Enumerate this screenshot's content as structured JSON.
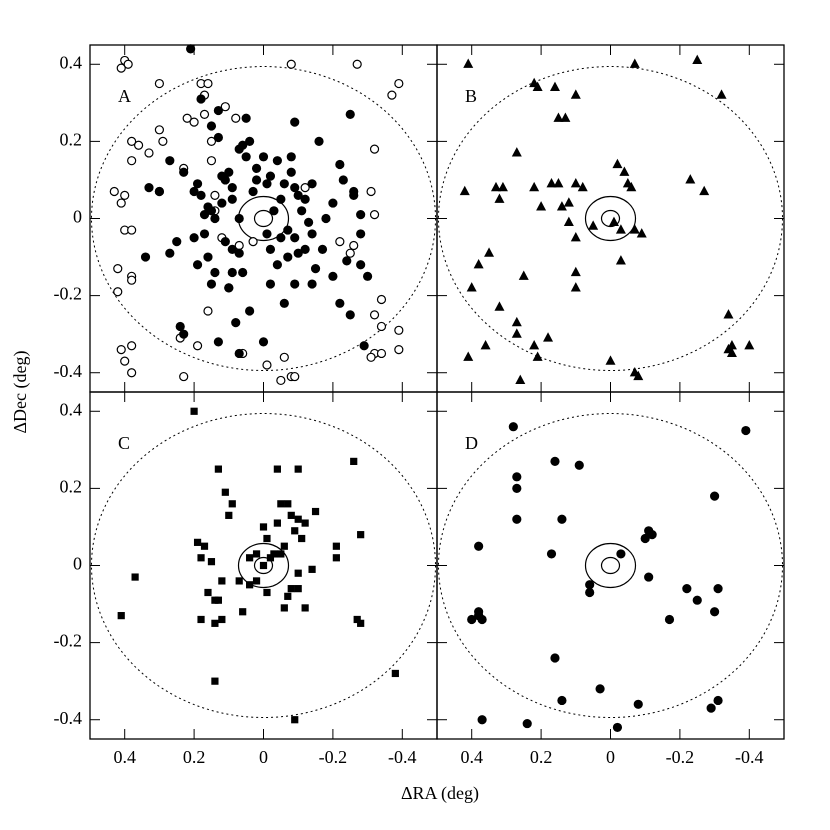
{
  "xlabel": "ΔRA (deg)",
  "ylabel": "ΔDec (deg)",
  "chart_data": [
    {
      "type": "scatter",
      "annotation": "A",
      "xlim": [
        0.5,
        -0.5
      ],
      "ylim": [
        -0.45,
        0.45
      ],
      "xticks": [
        0.4,
        0.2,
        0,
        -0.2,
        -0.4
      ],
      "yticks": [
        -0.4,
        -0.2,
        0,
        0.2,
        0.4
      ],
      "series": [
        {
          "color": "#000",
          "marker": "circle",
          "filled": false,
          "x": [
            0.4,
            0.41,
            0.39,
            0.3,
            0.18,
            0.16,
            0.17,
            0.11,
            0.08,
            0.22,
            0.2,
            0.17,
            0.3,
            0.36,
            0.38,
            0.29,
            0.33,
            0.38,
            0.15,
            0.23,
            0.15,
            -0.08,
            -0.27,
            -0.37,
            -0.39,
            -0.32,
            0.43,
            0.4,
            0.41,
            0.3,
            0.14,
            -0.12,
            0.14,
            0.4,
            0.38,
            0.07,
            0.12,
            -0.22,
            -0.25,
            0.42,
            0.38,
            0.38,
            0.42,
            0.1,
            0.16,
            -0.34,
            -0.32,
            -0.34,
            0.24,
            0.19,
            0.06,
            0.38,
            0.41,
            0.4,
            0.38,
            0.23,
            -0.01,
            -0.06,
            -0.08,
            -0.09,
            -0.05,
            -0.39,
            -0.32,
            -0.31,
            -0.34,
            -0.39,
            -0.26,
            -0.32,
            0.03,
            -0.31
          ],
          "y": [
            0.41,
            0.39,
            0.4,
            0.35,
            0.35,
            0.35,
            0.32,
            0.29,
            0.26,
            0.26,
            0.25,
            0.27,
            0.23,
            0.19,
            0.2,
            0.2,
            0.17,
            0.15,
            0.2,
            0.13,
            0.15,
            0.4,
            0.4,
            0.32,
            0.35,
            0.18,
            0.07,
            0.06,
            0.04,
            0.07,
            0.06,
            0.08,
            0.02,
            -0.03,
            -0.03,
            -0.07,
            -0.05,
            -0.06,
            -0.09,
            -0.13,
            -0.15,
            -0.16,
            -0.19,
            -0.18,
            -0.24,
            -0.21,
            -0.25,
            -0.28,
            -0.31,
            -0.33,
            -0.35,
            -0.33,
            -0.34,
            -0.37,
            -0.4,
            -0.41,
            -0.38,
            -0.36,
            -0.41,
            -0.41,
            -0.42,
            -0.29,
            -0.35,
            -0.36,
            -0.35,
            -0.34,
            -0.07,
            0.01,
            -0.06,
            0.07
          ]
        },
        {
          "color": "#000",
          "marker": "circle",
          "filled": true,
          "x": [
            0.2,
            0.18,
            0.19,
            0.16,
            0.17,
            0.15,
            0.14,
            0.12,
            0.11,
            0.1,
            0.09,
            0.07,
            0.05,
            0.06,
            0.15,
            0.13,
            0.18,
            0.12,
            0.09,
            0.07,
            0.2,
            0.16,
            0.19,
            0.17,
            0.11,
            0.09,
            0.07,
            0.06,
            0.15,
            0.14,
            0.1,
            0.09,
            0.23,
            0.25,
            0.33,
            0.34,
            0.24,
            0.23,
            0.13,
            0.07,
            0.0,
            0.04,
            -0.03,
            -0.05,
            -0.06,
            -0.08,
            -0.02,
            -0.01,
            -0.04,
            -0.08,
            -0.09,
            -0.1,
            -0.12,
            -0.14,
            -0.11,
            -0.13,
            -0.05,
            -0.07,
            -0.09,
            -0.1,
            -0.12,
            -0.14,
            -0.07,
            -0.04,
            -0.02,
            -0.01,
            -0.15,
            -0.17,
            -0.18,
            -0.2,
            -0.23,
            -0.26,
            -0.28,
            -0.28,
            -0.24,
            -0.28,
            -0.3,
            -0.2,
            -0.14,
            -0.09,
            -0.06,
            -0.02,
            -0.22,
            -0.25,
            -0.09,
            -0.16,
            -0.25,
            -0.22,
            -0.26,
            0.02,
            0.0,
            0.02,
            0.05,
            0.03,
            0.27,
            0.27,
            0.3,
            0.04,
            0.13,
            -0.29,
            0.08,
            0.21
          ],
          "y": [
            0.07,
            0.06,
            0.09,
            0.03,
            0.01,
            0.02,
            0.0,
            0.04,
            0.1,
            0.12,
            0.05,
            0.18,
            0.26,
            0.19,
            0.24,
            0.28,
            0.31,
            0.11,
            0.08,
            0.0,
            -0.05,
            -0.1,
            -0.12,
            -0.04,
            -0.06,
            -0.08,
            -0.09,
            -0.14,
            -0.17,
            -0.14,
            -0.18,
            -0.14,
            0.12,
            -0.06,
            0.08,
            -0.1,
            -0.28,
            -0.3,
            -0.32,
            -0.35,
            -0.32,
            -0.24,
            0.02,
            0.05,
            0.09,
            0.12,
            0.11,
            0.09,
            0.15,
            0.16,
            0.08,
            0.06,
            0.05,
            0.09,
            0.02,
            -0.01,
            -0.05,
            -0.03,
            -0.05,
            -0.09,
            -0.08,
            -0.04,
            -0.1,
            -0.12,
            -0.08,
            -0.04,
            -0.13,
            -0.08,
            0.0,
            0.04,
            0.1,
            0.06,
            0.01,
            -0.04,
            -0.11,
            -0.12,
            -0.15,
            -0.15,
            -0.17,
            -0.17,
            -0.22,
            -0.17,
            -0.22,
            -0.25,
            0.25,
            0.2,
            0.27,
            0.14,
            0.07,
            0.1,
            0.16,
            0.13,
            0.16,
            0.07,
            0.15,
            -0.09,
            0.07,
            0.2,
            0.21,
            -0.33,
            -0.27,
            0.44
          ]
        }
      ]
    },
    {
      "type": "scatter",
      "annotation": "B",
      "xlim": [
        0.5,
        -0.5
      ],
      "ylim": [
        -0.45,
        0.45
      ],
      "xticks": [
        0.4,
        0.2,
        0,
        -0.2,
        -0.4
      ],
      "yticks": [
        -0.4,
        -0.2,
        0,
        0.2,
        0.4
      ],
      "series": [
        {
          "color": "#000",
          "marker": "triangle",
          "filled": true,
          "x": [
            0.41,
            0.42,
            0.33,
            0.31,
            0.32,
            0.35,
            0.38,
            0.4,
            0.41,
            0.36,
            0.32,
            0.27,
            0.27,
            0.22,
            0.25,
            0.18,
            0.22,
            0.21,
            0.16,
            0.15,
            0.13,
            0.1,
            0.27,
            0.22,
            0.2,
            0.17,
            0.15,
            0.14,
            0.12,
            0.1,
            0.08,
            0.12,
            0.1,
            0.1,
            0.1,
            0.05,
            -0.02,
            -0.04,
            -0.05,
            -0.06,
            -0.03,
            -0.07,
            -0.09,
            -0.03,
            0.0,
            -0.07,
            -0.08,
            -0.07,
            -0.25,
            -0.32,
            -0.23,
            -0.27,
            0.26,
            -0.34,
            -0.35,
            -0.34,
            -0.35,
            -0.4,
            0.21,
            -0.01
          ],
          "y": [
            0.4,
            0.07,
            0.08,
            0.08,
            0.05,
            -0.09,
            -0.12,
            -0.18,
            -0.36,
            -0.33,
            -0.23,
            -0.27,
            -0.3,
            -0.33,
            -0.15,
            -0.31,
            0.35,
            0.34,
            0.34,
            0.26,
            0.26,
            0.32,
            0.17,
            0.08,
            0.03,
            0.09,
            0.09,
            0.03,
            0.04,
            0.09,
            0.08,
            -0.01,
            -0.05,
            -0.14,
            -0.18,
            -0.02,
            0.14,
            0.12,
            0.09,
            0.08,
            -0.03,
            -0.03,
            -0.04,
            -0.11,
            -0.37,
            -0.4,
            -0.41,
            0.4,
            0.41,
            0.32,
            0.1,
            0.07,
            -0.42,
            -0.25,
            -0.33,
            -0.34,
            -0.35,
            -0.33,
            -0.36,
            -0.01
          ]
        }
      ]
    },
    {
      "type": "scatter",
      "annotation": "C",
      "xlim": [
        0.5,
        -0.5
      ],
      "ylim": [
        -0.45,
        0.45
      ],
      "xticks": [
        0.4,
        0.2,
        0,
        -0.2,
        -0.4
      ],
      "yticks": [
        -0.4,
        -0.2,
        0,
        0.2,
        0.4
      ],
      "series": [
        {
          "color": "#000",
          "marker": "square",
          "filled": true,
          "x": [
            0.2,
            0.37,
            0.41,
            0.14,
            0.13,
            0.19,
            0.17,
            0.18,
            0.15,
            0.16,
            0.14,
            0.13,
            0.12,
            0.18,
            0.14,
            0.1,
            0.09,
            0.11,
            0.07,
            0.06,
            0.04,
            0.02,
            0.02,
            0.0,
            -0.01,
            -0.02,
            -0.03,
            -0.05,
            -0.06,
            -0.04,
            -0.05,
            -0.07,
            -0.08,
            -0.1,
            -0.09,
            -0.12,
            -0.11,
            -0.1,
            -0.08,
            -0.07,
            -0.06,
            -0.1,
            -0.12,
            -0.14,
            -0.15,
            -0.1,
            -0.04,
            -0.21,
            -0.21,
            -0.26,
            -0.28,
            -0.27,
            -0.28,
            -0.38,
            -0.09,
            0.0,
            0.04,
            -0.01,
            0.12
          ],
          "y": [
            0.4,
            -0.03,
            -0.13,
            -0.3,
            0.25,
            0.06,
            0.05,
            0.02,
            0.01,
            -0.07,
            -0.09,
            -0.09,
            -0.14,
            -0.14,
            -0.15,
            0.13,
            0.16,
            0.19,
            -0.04,
            -0.12,
            0.02,
            0.03,
            -0.04,
            0.1,
            0.07,
            0.02,
            0.03,
            0.03,
            0.05,
            0.11,
            0.16,
            0.16,
            0.13,
            0.12,
            0.09,
            0.11,
            0.07,
            -0.02,
            -0.06,
            -0.08,
            -0.11,
            -0.06,
            -0.11,
            -0.01,
            0.14,
            0.25,
            0.25,
            0.05,
            0.02,
            0.27,
            0.08,
            -0.14,
            -0.15,
            -0.28,
            -0.4,
            0.0,
            -0.05,
            -0.07,
            -0.04
          ]
        }
      ]
    },
    {
      "type": "scatter",
      "annotation": "D",
      "xlim": [
        0.5,
        -0.5
      ],
      "ylim": [
        -0.45,
        0.45
      ],
      "xticks": [
        0.4,
        0.2,
        0,
        -0.2,
        -0.4
      ],
      "yticks": [
        -0.4,
        -0.2,
        0,
        0.2,
        0.4
      ],
      "series": [
        {
          "color": "#000",
          "marker": "circle",
          "filled": true,
          "x": [
            0.38,
            0.4,
            0.38,
            0.38,
            0.37,
            0.37,
            0.24,
            0.28,
            0.27,
            0.27,
            0.27,
            0.16,
            0.09,
            0.14,
            0.17,
            0.06,
            0.06,
            0.16,
            0.14,
            0.03,
            -0.03,
            -0.1,
            -0.12,
            -0.11,
            -0.11,
            -0.17,
            -0.22,
            -0.25,
            -0.3,
            -0.31,
            -0.3,
            -0.29,
            -0.31,
            -0.08,
            -0.02,
            -0.39
          ],
          "y": [
            0.05,
            -0.14,
            -0.13,
            -0.12,
            -0.14,
            -0.4,
            -0.41,
            0.36,
            0.23,
            0.2,
            0.12,
            0.27,
            0.26,
            0.12,
            0.03,
            -0.05,
            -0.07,
            -0.24,
            -0.35,
            -0.32,
            0.03,
            0.07,
            0.08,
            0.09,
            -0.03,
            -0.14,
            -0.06,
            -0.09,
            0.18,
            -0.06,
            -0.12,
            -0.37,
            -0.35,
            -0.36,
            -0.42,
            0.35
          ]
        }
      ]
    }
  ]
}
